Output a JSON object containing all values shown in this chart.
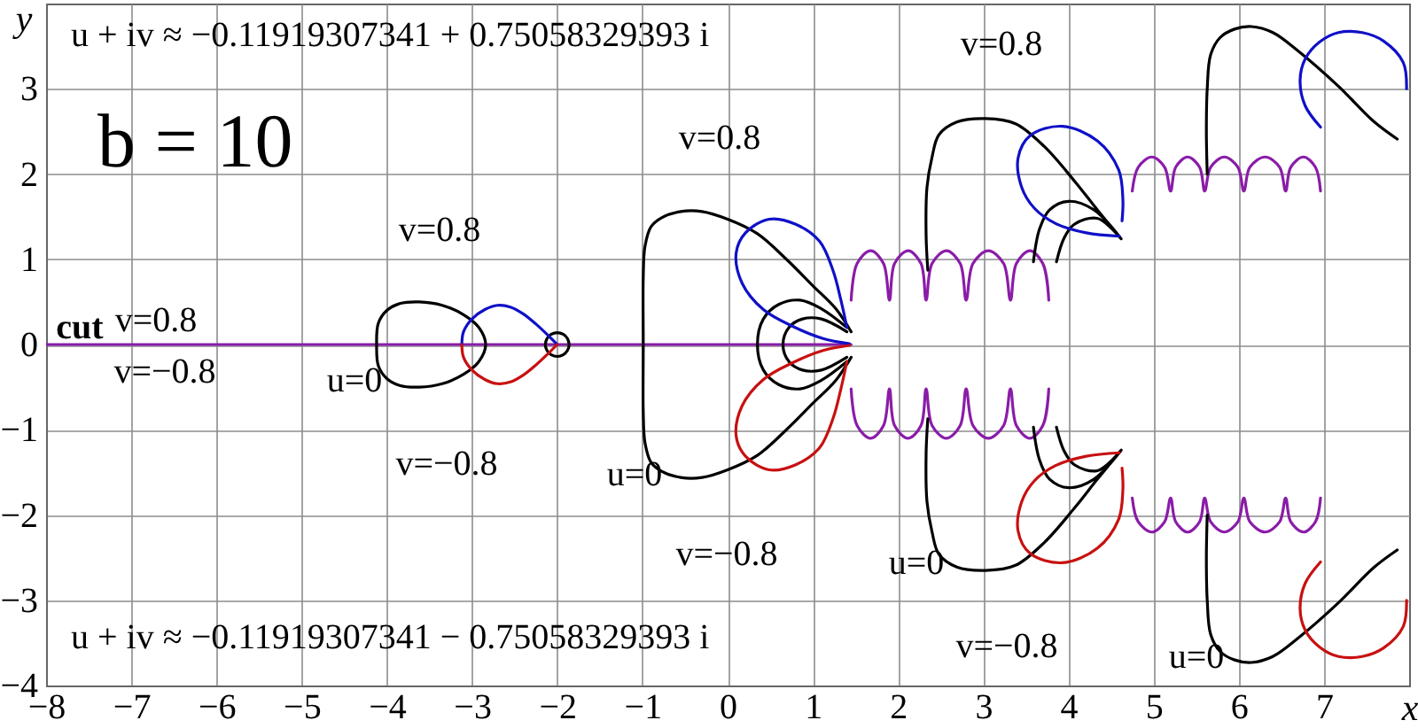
{
  "chart_data": {
    "type": "line",
    "title": "b = 10",
    "xlabel": "x",
    "ylabel": "y",
    "xlim": [
      -8,
      8
    ],
    "ylim": [
      -4,
      4
    ],
    "xticks": [
      -8,
      -7,
      -6,
      -5,
      -4,
      -3,
      -2,
      -1,
      0,
      1,
      2,
      3,
      4,
      5,
      6,
      7
    ],
    "yticks": [
      -4,
      -3,
      -2,
      -1,
      0,
      1,
      2,
      3
    ],
    "grid": true,
    "series": [
      {
        "color": "#8a1ca8",
        "x": [
          -8,
          1.45,
          null,
          1.45,
          1.52,
          1.68,
          1.83,
          1.9,
          1.96,
          2.12,
          2.27,
          2.33,
          2.4,
          2.57,
          2.73,
          2.8,
          2.88,
          3.06,
          3.24,
          3.32,
          3.39,
          3.55,
          3.7,
          3.77,
          null,
          1.45,
          1.52,
          1.68,
          1.83,
          1.9,
          1.96,
          2.12,
          2.27,
          2.33,
          2.4,
          2.57,
          2.73,
          2.8,
          2.88,
          3.06,
          3.24,
          3.32,
          3.39,
          3.55,
          3.7,
          3.77,
          null,
          4.75,
          4.82,
          4.98,
          5.13,
          5.2,
          5.26,
          5.4,
          5.54,
          5.6,
          5.67,
          5.83,
          5.99,
          6.06,
          6.13,
          6.31,
          6.48,
          6.55,
          6.61,
          6.76,
          6.9,
          6.96,
          null,
          4.75,
          4.82,
          4.98,
          5.13,
          5.2,
          5.26,
          5.4,
          5.54,
          5.6,
          5.67,
          5.83,
          5.99,
          6.06,
          6.13,
          6.31,
          6.48,
          6.55,
          6.61,
          6.76,
          6.9,
          6.96
        ],
        "values": [
          0,
          0,
          null,
          0.52,
          0.95,
          1.1,
          0.95,
          0.52,
          0.95,
          1.1,
          0.95,
          0.52,
          0.95,
          1.1,
          0.95,
          0.52,
          0.95,
          1.1,
          0.95,
          0.52,
          0.95,
          1.1,
          0.95,
          0.52,
          null,
          -0.52,
          -0.95,
          -1.1,
          -0.95,
          -0.52,
          -0.95,
          -1.1,
          -0.95,
          -0.52,
          -0.95,
          -1.1,
          -0.95,
          -0.52,
          -0.95,
          -1.1,
          -0.95,
          -0.52,
          -0.95,
          -1.1,
          -0.95,
          -0.52,
          null,
          1.8,
          2.08,
          2.2,
          2.08,
          1.8,
          2.08,
          2.2,
          2.08,
          1.8,
          2.08,
          2.2,
          2.08,
          1.8,
          2.08,
          2.2,
          2.08,
          1.8,
          2.08,
          2.2,
          2.08,
          1.8,
          null,
          -1.8,
          -2.08,
          -2.2,
          -2.08,
          -1.8,
          -2.08,
          -2.2,
          -2.08,
          -1.8,
          -2.08,
          -2.2,
          -2.08,
          -1.8,
          -2.08,
          -2.2,
          -2.08,
          -1.8,
          -2.08,
          -2.2,
          -2.08,
          -1.8
        ]
      },
      {
        "color": "#000000",
        "x": [
          -4.12,
          -4.1,
          -4.0,
          -3.85,
          -3.62,
          -3.35,
          -3.1,
          -2.92,
          -2.84,
          -2.92,
          -3.1,
          -3.35,
          -3.62,
          -3.85,
          -4.0,
          -4.1,
          -4.12,
          -4.1,
          -4.0,
          -3.85,
          null,
          -1.86,
          -1.88,
          -1.93,
          -2.0,
          -2.07,
          -2.12,
          -2.14,
          -2.12,
          -2.07,
          -2.0,
          -1.93,
          -1.88,
          -1.86,
          -1.88,
          -1.93,
          -2.0,
          -2.07,
          -2.12,
          -2.14,
          null,
          1.45,
          1.27,
          1.0,
          0.69,
          0.35,
          0.0,
          -0.3,
          -0.55,
          -0.77,
          -0.9,
          -0.97,
          -0.99,
          -0.99,
          -0.99,
          -0.97,
          -0.9,
          -0.77,
          -0.55,
          -0.3,
          0.0,
          0.35,
          0.69,
          1.0,
          1.27,
          1.45,
          null,
          1.4,
          1.1,
          0.85,
          0.6,
          0.42,
          0.35,
          0.42,
          0.6,
          0.85,
          1.1,
          1.4,
          null,
          1.4,
          1.1,
          0.88,
          0.72,
          0.65,
          0.72,
          0.88,
          1.1,
          1.4,
          null,
          2.35,
          2.33,
          2.34,
          2.4,
          2.48,
          2.69,
          3.03,
          3.38,
          3.72,
          4.07,
          4.34,
          4.62,
          null,
          2.35,
          2.33,
          2.34,
          2.4,
          2.48,
          2.69,
          3.03,
          3.38,
          3.72,
          4.07,
          4.34,
          4.62,
          null,
          3.59,
          3.66,
          3.78,
          4.0,
          4.3,
          4.62,
          null,
          3.59,
          3.66,
          3.78,
          4.0,
          4.3,
          4.62,
          null,
          3.86,
          3.95,
          4.07,
          4.34,
          4.62,
          null,
          3.86,
          3.95,
          4.07,
          4.34,
          4.62,
          null,
          5.63,
          5.62,
          5.63,
          5.67,
          5.78,
          5.95,
          6.15,
          6.4,
          6.69,
          7.17,
          7.58,
          7.86,
          null,
          5.63,
          5.62,
          5.63,
          5.67,
          5.78,
          5.95,
          6.15,
          6.4,
          6.69,
          7.17,
          7.58,
          7.86
        ],
        "values": [
          0,
          0.25,
          0.4,
          0.48,
          0.5,
          0.46,
          0.35,
          0.2,
          0,
          -0.2,
          -0.35,
          -0.46,
          -0.5,
          -0.48,
          -0.4,
          -0.25,
          0,
          0.25,
          0.4,
          0.48,
          null,
          0,
          0.07,
          0.12,
          0.14,
          0.12,
          0.07,
          0,
          -0.07,
          -0.12,
          -0.14,
          -0.12,
          -0.07,
          0,
          0.07,
          0.12,
          0.14,
          0.12,
          0.07,
          0,
          null,
          0.15,
          0.42,
          0.69,
          1.0,
          1.3,
          1.47,
          1.56,
          1.56,
          1.49,
          1.38,
          1.15,
          0.8,
          0,
          -0.8,
          -1.15,
          -1.38,
          -1.49,
          -1.56,
          -1.56,
          -1.47,
          -1.3,
          -1.0,
          -0.69,
          -0.42,
          -0.15,
          null,
          -0.2,
          -0.42,
          -0.52,
          -0.47,
          -0.3,
          0,
          0.3,
          0.47,
          0.52,
          0.42,
          0.2,
          null,
          -0.15,
          -0.3,
          -0.3,
          -0.2,
          0,
          0.2,
          0.3,
          0.3,
          0.15,
          null,
          0.87,
          1.28,
          1.84,
          2.2,
          2.46,
          2.61,
          2.65,
          2.59,
          2.32,
          1.92,
          1.58,
          1.24,
          null,
          -0.87,
          -1.28,
          -1.84,
          -2.2,
          -2.46,
          -2.61,
          -2.65,
          -2.59,
          -2.32,
          -1.92,
          -1.58,
          -1.24,
          null,
          0.97,
          1.35,
          1.58,
          1.68,
          1.58,
          1.24,
          null,
          -0.97,
          -1.35,
          -1.58,
          -1.68,
          -1.58,
          -1.24,
          null,
          0.97,
          1.25,
          1.41,
          1.48,
          1.24,
          null,
          -0.97,
          -1.25,
          -1.41,
          -1.48,
          -1.24,
          null,
          2.0,
          2.5,
          3.0,
          3.4,
          3.6,
          3.7,
          3.73,
          3.66,
          3.45,
          3.03,
          2.62,
          2.41,
          null,
          -2.0,
          -2.5,
          -3.0,
          -3.4,
          -3.6,
          -3.7,
          -3.73,
          -3.66,
          -3.45,
          -3.03,
          -2.62,
          -2.41
        ]
      },
      {
        "color": "#1010c8",
        "x": [
          -3.12,
          -3.1,
          -3.0,
          -2.85,
          -2.7,
          -2.55,
          -2.4,
          -2.25,
          -2.1,
          -2.0,
          null,
          1.43,
          1.12,
          0.77,
          0.42,
          0.17,
          0.1,
          0.21,
          0.49,
          0.8,
          1.08,
          1.24,
          1.33,
          1.4,
          null,
          4.6,
          4.21,
          3.85,
          3.6,
          3.45,
          3.41,
          3.55,
          3.93,
          4.34,
          4.59,
          4.64,
          4.63,
          null,
          6.96,
          6.78,
          6.72,
          6.78,
          6.95,
          7.17,
          7.45,
          7.7,
          7.93,
          7.97
        ],
        "values": [
          0,
          0.15,
          0.3,
          0.41,
          0.46,
          0.44,
          0.36,
          0.24,
          0.1,
          0,
          null,
          0.01,
          0.07,
          0.21,
          0.41,
          0.72,
          1.07,
          1.31,
          1.47,
          1.41,
          1.21,
          0.86,
          0.52,
          0.2,
          null,
          1.27,
          1.31,
          1.42,
          1.6,
          1.85,
          2.19,
          2.45,
          2.56,
          2.39,
          2.05,
          1.7,
          1.45,
          null,
          2.55,
          2.8,
          3.1,
          3.35,
          3.55,
          3.66,
          3.66,
          3.56,
          3.31,
          3.0
        ]
      },
      {
        "color": "#c81010",
        "x": [
          -3.12,
          -3.1,
          -3.0,
          -2.85,
          -2.7,
          -2.55,
          -2.4,
          -2.25,
          -2.1,
          -2.0,
          null,
          1.43,
          1.12,
          0.77,
          0.42,
          0.17,
          0.1,
          0.21,
          0.49,
          0.8,
          1.08,
          1.24,
          1.33,
          1.4,
          null,
          4.6,
          4.21,
          3.85,
          3.6,
          3.45,
          3.41,
          3.55,
          3.93,
          4.34,
          4.59,
          4.64,
          4.63,
          null,
          6.96,
          6.78,
          6.72,
          6.78,
          6.95,
          7.17,
          7.45,
          7.7,
          7.93,
          7.97
        ],
        "values": [
          0,
          -0.15,
          -0.3,
          -0.41,
          -0.46,
          -0.44,
          -0.36,
          -0.24,
          -0.1,
          0,
          null,
          -0.01,
          -0.07,
          -0.21,
          -0.41,
          -0.72,
          -1.07,
          -1.31,
          -1.47,
          -1.41,
          -1.21,
          -0.86,
          -0.52,
          -0.2,
          null,
          -1.27,
          -1.31,
          -1.42,
          -1.6,
          -1.85,
          -2.19,
          -2.45,
          -2.56,
          -2.39,
          -2.05,
          -1.7,
          -1.45,
          null,
          -2.55,
          -2.8,
          -3.1,
          -3.35,
          -3.55,
          -3.66,
          -3.66,
          -3.56,
          -3.31,
          -3.0
        ]
      }
    ],
    "annotations": [
      "u + iv ≈ −0.11919307341 + 0.75058329393 i",
      "u + iv ≈ −0.11919307341 − 0.75058329393 i",
      "cut",
      "v=0.8",
      "v=−0.8",
      "u=0",
      "v=0.8",
      "v=−0.8",
      "u=0",
      "v=0.8",
      "v=−0.8",
      "v=0.8",
      "u=0",
      "v=−0.8",
      "u=0"
    ]
  }
}
